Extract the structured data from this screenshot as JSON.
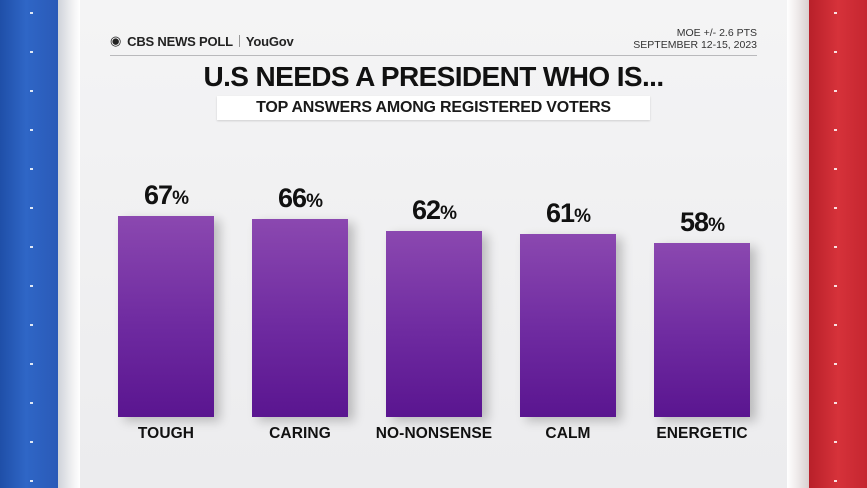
{
  "header": {
    "brand": "CBS NEWS POLL",
    "partner": "YouGov",
    "moe": "MOE +/- 2.6 PTS",
    "dates": "SEPTEMBER 12-15, 2023"
  },
  "chart_data": {
    "type": "bar",
    "title": "U.S NEEDS A PRESIDENT WHO IS...",
    "subtitle": "TOP ANSWERS AMONG REGISTERED VOTERS",
    "categories": [
      "TOUGH",
      "CARING",
      "NO-NONSENSE",
      "CALM",
      "ENERGETIC"
    ],
    "values": [
      67,
      66,
      62,
      61,
      58
    ],
    "unit": "%",
    "ylim": [
      0,
      100
    ]
  },
  "colors": {
    "bar": "#7a34a8",
    "left_stripe": "#2a5ab8",
    "right_stripe": "#c52630"
  }
}
